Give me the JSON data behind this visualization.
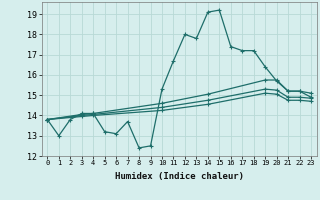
{
  "title": "",
  "xlabel": "Humidex (Indice chaleur)",
  "xlim": [
    -0.5,
    23.5
  ],
  "ylim": [
    12,
    19.6
  ],
  "yticks": [
    12,
    13,
    14,
    15,
    16,
    17,
    18,
    19
  ],
  "xticks": [
    0,
    1,
    2,
    3,
    4,
    5,
    6,
    7,
    8,
    9,
    10,
    11,
    12,
    13,
    14,
    15,
    16,
    17,
    18,
    19,
    20,
    21,
    22,
    23
  ],
  "bg_color": "#d6eeed",
  "line_color": "#1e6e6a",
  "grid_color": "#b8d9d6",
  "line1_x": [
    0,
    1,
    2,
    3,
    4,
    5,
    6,
    7,
    8,
    9,
    10,
    11,
    12,
    13,
    14,
    15,
    16,
    17,
    18,
    19,
    20,
    21,
    22,
    23
  ],
  "line1_y": [
    13.8,
    13.0,
    13.8,
    14.1,
    14.1,
    13.2,
    13.1,
    13.7,
    12.4,
    12.5,
    15.3,
    16.7,
    18.0,
    17.8,
    19.1,
    19.2,
    17.4,
    17.2,
    17.2,
    16.4,
    15.7,
    15.2,
    15.2,
    14.9
  ],
  "line2_x": [
    0,
    3,
    4,
    10,
    14,
    19,
    20,
    21,
    22,
    23
  ],
  "line2_y": [
    13.8,
    14.05,
    14.1,
    14.6,
    15.05,
    15.75,
    15.75,
    15.2,
    15.2,
    15.1
  ],
  "line3_x": [
    0,
    3,
    4,
    10,
    14,
    19,
    20,
    21,
    22,
    23
  ],
  "line3_y": [
    13.8,
    14.0,
    14.05,
    14.4,
    14.75,
    15.3,
    15.25,
    14.9,
    14.9,
    14.85
  ],
  "line4_x": [
    0,
    3,
    4,
    10,
    14,
    19,
    20,
    21,
    22,
    23
  ],
  "line4_y": [
    13.8,
    13.95,
    14.0,
    14.25,
    14.55,
    15.1,
    15.05,
    14.75,
    14.75,
    14.7
  ]
}
